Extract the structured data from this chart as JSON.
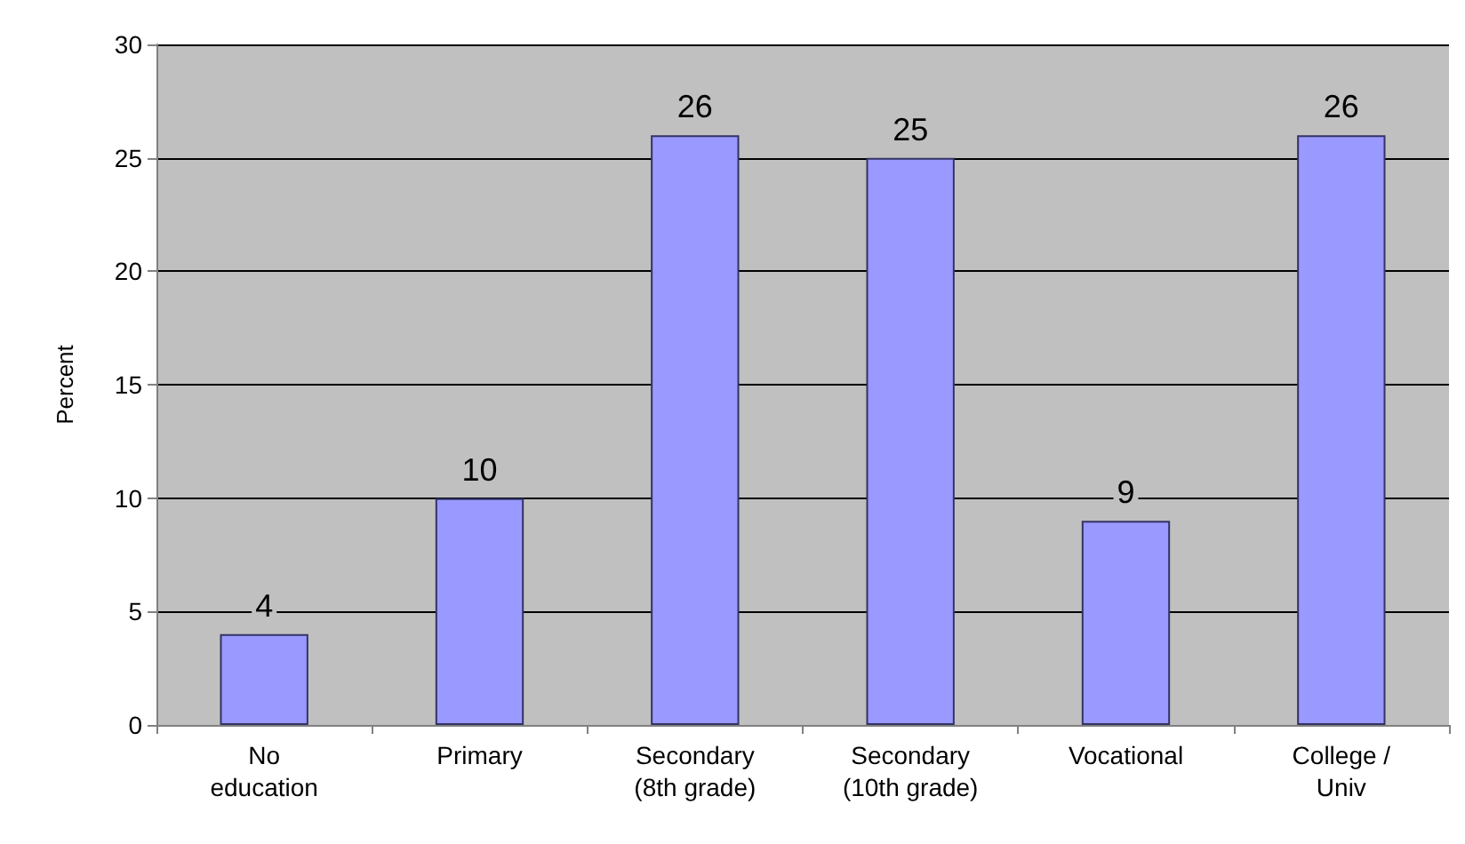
{
  "chart_data": {
    "type": "bar",
    "ylabel": "Percent",
    "categories": [
      "No\neducation",
      "Primary",
      "Secondary\n(8th grade)",
      "Secondary\n(10th grade)",
      "Vocational",
      "College /\nUniv"
    ],
    "values": [
      4,
      10,
      26,
      25,
      9,
      26
    ],
    "color": "#9999ff",
    "ylim": [
      0,
      30
    ],
    "yticks": [
      0,
      5,
      10,
      15,
      20,
      25,
      30
    ],
    "grid": "y",
    "data_labels": true
  }
}
